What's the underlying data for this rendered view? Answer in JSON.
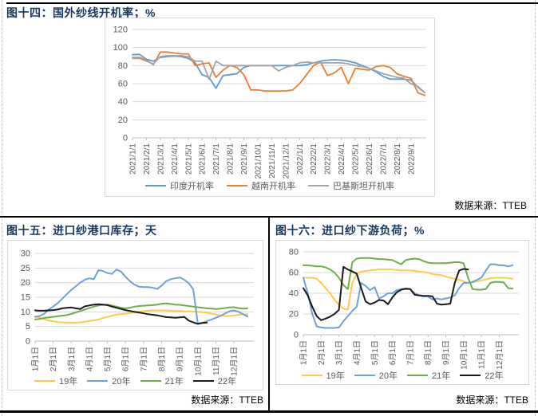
{
  "sections": {
    "top": {
      "title": "图十四：国外纱线开机率；%",
      "source": "数据来源：TTEB"
    },
    "bottom_left": {
      "title": "图十五：进口纱港口库存；天",
      "source": "数据来源：TTEB"
    },
    "bottom_right": {
      "title": "图十六：进口纱下游负荷；%",
      "source": "数据来源：TTEB"
    }
  },
  "chart_data": [
    {
      "type": "line",
      "title": "图十四：国外纱线开机率；%",
      "ylabel": "%",
      "ylim": [
        0,
        120
      ],
      "ystep": 20,
      "grid": true,
      "legend_position": "bottom",
      "points_per_month": 2,
      "x_tick_labels": [
        "2021/1/1",
        "2021/2/1",
        "2021/3/1",
        "2021/4/1",
        "2021/5/1",
        "2021/6/1",
        "2021/7/1",
        "2021/8/1",
        "2021/9/1",
        "2021/10/1",
        "2021/11/1",
        "2021/12/1",
        "2022/1/1",
        "2022/2/1",
        "2022/3/1",
        "2022/4/1",
        "2022/5/1",
        "2022/6/1",
        "2022/7/1",
        "2022/8/1",
        "2022/9/1"
      ],
      "series": [
        {
          "name": "印度开机率",
          "color": "#5B9BD5",
          "values": [
            92,
            92.5,
            87,
            85,
            89,
            90,
            90.5,
            90,
            88,
            83,
            70,
            67,
            55,
            69,
            70,
            71,
            78,
            80,
            80,
            80,
            80,
            80,
            80,
            80,
            80,
            81,
            83,
            85,
            86,
            86.5,
            86,
            85,
            83,
            80,
            77,
            73,
            68,
            65,
            65,
            65,
            64,
            56,
            50
          ]
        },
        {
          "name": "越南开机率",
          "color": "#ED7D31",
          "values": [
            89,
            89,
            86,
            81,
            95,
            95,
            94,
            93,
            93,
            80,
            82,
            83,
            67,
            75,
            80,
            78,
            70,
            53,
            53,
            52,
            52,
            52,
            52,
            53,
            60,
            70,
            80,
            84,
            69,
            72,
            78,
            60,
            77,
            76,
            75,
            79,
            80,
            78,
            71,
            68,
            66,
            50,
            47
          ]
        },
        {
          "name": "巴基斯坦开机率",
          "color": "#A5A5A5",
          "values": [
            88,
            88,
            85,
            82,
            90,
            91,
            91,
            91,
            90,
            85,
            85,
            65,
            85,
            80,
            80,
            80,
            80,
            80,
            80,
            80,
            80,
            74,
            78,
            80,
            83,
            84,
            83,
            83,
            83,
            83,
            83,
            82,
            80,
            79,
            77,
            74,
            71,
            69,
            67,
            66,
            60,
            57,
            50
          ]
        }
      ]
    },
    {
      "type": "line",
      "title": "图十五：进口纱港口库存；天",
      "ylabel": "天",
      "ylim": [
        0,
        30
      ],
      "ystep": 5,
      "grid": true,
      "legend_position": "bottom",
      "points_per_month": 4,
      "x_tick_labels": [
        "1月1日",
        "2月1日",
        "3月1日",
        "4月1日",
        "5月1日",
        "6月1日",
        "7月1日",
        "8月1日",
        "9月1日",
        "10月1日",
        "11月1日",
        "12月1日"
      ],
      "series": [
        {
          "name": "19年",
          "color": "#FFC94D",
          "values": [
            8.5,
            8,
            7.5,
            7,
            6.8,
            6.5,
            6.4,
            6.3,
            6.3,
            6.3,
            6.4,
            6.6,
            6.9,
            7.1,
            7.4,
            7.9,
            8.3,
            8.7,
            9,
            9.2,
            9.4,
            9.6,
            9.8,
            10,
            10.2,
            10.4,
            10.5,
            10.5,
            10.5,
            10.5,
            10.4,
            10.3,
            10.3,
            10.2,
            10.2,
            10.1,
            10,
            9.9,
            9.7,
            9.4,
            9.1,
            8.8,
            8.6,
            8.6,
            8.8,
            9,
            9.2,
            9.1
          ]
        },
        {
          "name": "20年",
          "color": "#6FA0DC",
          "values": [
            8.3,
            8.6,
            9.3,
            10.8,
            11.8,
            13,
            14.5,
            16,
            17.5,
            18.8,
            20,
            21,
            21.5,
            21.2,
            24.3,
            24,
            23.3,
            23,
            24.5,
            23.8,
            22,
            20.5,
            19.3,
            18.6,
            18.5,
            18.5,
            18.3,
            17.8,
            19,
            20.5,
            21.2,
            21.5,
            21.8,
            21,
            19.8,
            17.7,
            6,
            6.3,
            6.8,
            7.4,
            8,
            8.6,
            9.4,
            10.2,
            10.5,
            10,
            9.2,
            8.4
          ]
        },
        {
          "name": "21年",
          "color": "#70AD47",
          "values": [
            7.4,
            7.6,
            7.9,
            8.1,
            8.3,
            8.5,
            8.7,
            8.9,
            9.3,
            9.8,
            10.3,
            10.8,
            11.3,
            11.8,
            12.2,
            12.4,
            12.5,
            12.2,
            11.8,
            11.4,
            11.2,
            11.4,
            11.8,
            12,
            12.1,
            12.2,
            12.3,
            12.5,
            12.8,
            12.9,
            12.7,
            12.5,
            12.4,
            12.2,
            12,
            11.8,
            11.6,
            11.4,
            11.2,
            11.1,
            11,
            11.1,
            11.3,
            11.5,
            11.6,
            11.3,
            11.1,
            11.2
          ]
        },
        {
          "name": "22年",
          "color": "#1A1A1A",
          "values": [
            10.5,
            10.4,
            10.4,
            10.5,
            10.6,
            10.8,
            11.2,
            11.4,
            11.5,
            11.2,
            11,
            11.9,
            12.2,
            12.5,
            12.6,
            12.5,
            12.3,
            11.8,
            11.4,
            11,
            10.6,
            10.3,
            10,
            9.8,
            9.5,
            9.2,
            9,
            8.8,
            8.5,
            8.2,
            8.1,
            8,
            8.1,
            8.3,
            7,
            6.4,
            5.9,
            6.2,
            6.3
          ]
        }
      ]
    },
    {
      "type": "line",
      "title": "图十六：进口纱下游负荷；%",
      "ylabel": "%",
      "ylim": [
        0,
        80
      ],
      "ystep": 20,
      "grid": true,
      "legend_position": "bottom",
      "points_per_month": 4,
      "x_tick_labels": [
        "1月1日",
        "2月1日",
        "3月1日",
        "4月1日",
        "5月1日",
        "6月1日",
        "7月1日",
        "8月1日",
        "9月1日",
        "10月1日",
        "11月1日",
        "12月1日"
      ],
      "series": [
        {
          "name": "19年",
          "color": "#FFC94D",
          "values": [
            55,
            55,
            55,
            54,
            50,
            45,
            40,
            34,
            29,
            25,
            24.5,
            50,
            59,
            61,
            61.5,
            62,
            62.5,
            63,
            63,
            63,
            63,
            62.5,
            62,
            62,
            62,
            61.5,
            61,
            60.5,
            60,
            58.5,
            58,
            57.5,
            56,
            55,
            54,
            53,
            51.5,
            50,
            50.5,
            51.5,
            52.5,
            53.5,
            54.5,
            55,
            55,
            55,
            54.5,
            54
          ]
        },
        {
          "name": "20年",
          "color": "#6FA0DC",
          "values": [
            55,
            40,
            20,
            8,
            7,
            6.5,
            6.5,
            6.5,
            7,
            13,
            18,
            23,
            27,
            50,
            47,
            43,
            46,
            35,
            37,
            40,
            40,
            43,
            44,
            44,
            44,
            40,
            38,
            37,
            37,
            34,
            35,
            34,
            35,
            36,
            38,
            45,
            50,
            50,
            51,
            53,
            55,
            62,
            68,
            68,
            67,
            67,
            66,
            67
          ]
        },
        {
          "name": "21年",
          "color": "#70AD47",
          "values": [
            67,
            67,
            66.5,
            66,
            66,
            65,
            63,
            60,
            55,
            48,
            44,
            70,
            73.5,
            74,
            74,
            74,
            73.5,
            73,
            73,
            72.5,
            72,
            70,
            68,
            72,
            73,
            73.5,
            73,
            71,
            69.5,
            69,
            69,
            69,
            69,
            69.5,
            70,
            70,
            69,
            55,
            44,
            43.5,
            43.5,
            44,
            50,
            51,
            51,
            50.5,
            45,
            44.5
          ]
        },
        {
          "name": "22年",
          "color": "#1A1A1A",
          "values": [
            45,
            38,
            27,
            18,
            14,
            15.5,
            17.5,
            20,
            24,
            65.5,
            63,
            61,
            59,
            45,
            32,
            29.5,
            31,
            33.5,
            33,
            29.5,
            36,
            41,
            43.5,
            44.5,
            44,
            38.5,
            38,
            37.5,
            37.5,
            37,
            30,
            29,
            29.5,
            30,
            50,
            62,
            63.5,
            63
          ]
        }
      ]
    }
  ]
}
